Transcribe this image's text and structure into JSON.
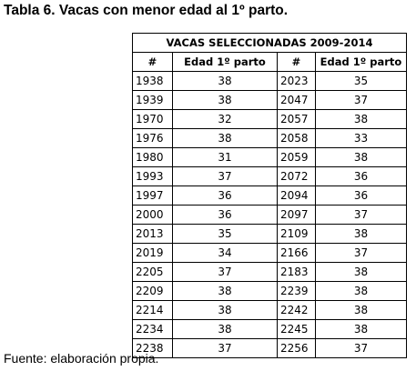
{
  "title": "Tabla 6. Vacas con menor edad al 1º parto.",
  "table": {
    "caption": "VACAS SELECCIONADAS 2009-2014",
    "headers": [
      "#",
      "Edad 1º parto",
      "#",
      "Edad 1º parto"
    ],
    "rows": [
      [
        "1938",
        "38",
        "2023",
        "35"
      ],
      [
        "1939",
        "38",
        "2047",
        "37"
      ],
      [
        "1970",
        "32",
        "2057",
        "38"
      ],
      [
        "1976",
        "38",
        "2058",
        "33"
      ],
      [
        "1980",
        "31",
        "2059",
        "38"
      ],
      [
        "1993",
        "37",
        "2072",
        "36"
      ],
      [
        "1997",
        "36",
        "2094",
        "36"
      ],
      [
        "2000",
        "36",
        "2097",
        "37"
      ],
      [
        "2013",
        "35",
        "2109",
        "38"
      ],
      [
        "2019",
        "34",
        "2166",
        "37"
      ],
      [
        "2205",
        "37",
        "2183",
        "38"
      ],
      [
        "2209",
        "38",
        "2239",
        "38"
      ],
      [
        "2214",
        "38",
        "2242",
        "38"
      ],
      [
        "2234",
        "38",
        "2245",
        "38"
      ],
      [
        "2238",
        "37",
        "2256",
        "37"
      ]
    ]
  },
  "source": "Fuente: elaboración propia."
}
